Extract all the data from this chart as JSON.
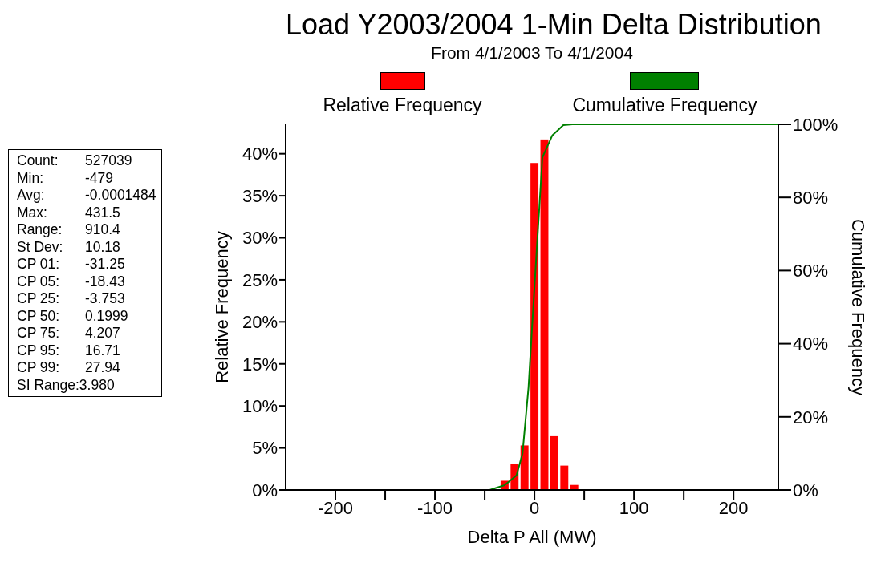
{
  "chart_data": {
    "type": "histogram",
    "title": "Load Y2003/2004 1-Min Delta Distribution",
    "subtitle": "From 4/1/2003 To 4/1/2004",
    "xlabel": "Delta P All (MW)",
    "ylabel": "Relative Frequency",
    "y2label": "Cumulative Frequency",
    "bins": [
      -45,
      -35,
      -25,
      -15,
      -5,
      5,
      15,
      25,
      35,
      45,
      55
    ],
    "series": [
      {
        "name": "Relative Frequency",
        "color": "#ff0000",
        "values": [
          null,
          1.1,
          3.1,
          5.3,
          38.9,
          41.7,
          6.4,
          2.9,
          0.6,
          null
        ]
      },
      {
        "name": "Cumulative Frequency",
        "type": "line",
        "axis": "y2",
        "color": "#008000",
        "x": [
          -250,
          -45,
          -30,
          -18,
          -12,
          -6,
          1,
          8,
          18,
          29,
          38,
          245
        ],
        "values": [
          0,
          0,
          1.3,
          4,
          10,
          28,
          60,
          91,
          97,
          99.8,
          100,
          100
        ]
      }
    ],
    "xlim": [
      -250,
      245
    ],
    "xticks": [
      -200,
      {
        "value": -150,
        "label": null
      },
      -100,
      {
        "value": -50,
        "label": null
      },
      0,
      {
        "value": 50,
        "label": null
      },
      100,
      {
        "value": 150,
        "label": null
      },
      200
    ],
    "ylim": [
      0,
      43.5
    ],
    "yticks": [
      {
        "value": 0,
        "label": "0%"
      },
      {
        "value": 5,
        "label": "5%"
      },
      {
        "value": 10,
        "label": "10%"
      },
      {
        "value": 15,
        "label": "15%"
      },
      {
        "value": 20,
        "label": "20%"
      },
      {
        "value": 25,
        "label": "25%"
      },
      {
        "value": 30,
        "label": "30%"
      },
      {
        "value": 35,
        "label": "35%"
      },
      {
        "value": 40,
        "label": "40%"
      }
    ],
    "y2lim": [
      0,
      100
    ],
    "y2ticks": [
      {
        "value": 0,
        "label": "0%"
      },
      {
        "value": 20,
        "label": "20%"
      },
      {
        "value": 40,
        "label": "40%"
      },
      {
        "value": 60,
        "label": "60%"
      },
      {
        "value": 80,
        "label": "80%"
      },
      {
        "value": 100,
        "label": "100%"
      }
    ],
    "legend": "top",
    "grid": false,
    "marker": "none",
    "annotations": [
      "Count: 527039",
      "Min: -479",
      "Avg: -0.0001484",
      "Max: 431.5",
      "Range: 910.4",
      "St Dev: 10.18",
      "CP 01: -31.25",
      "CP 05: -18.43",
      "CP 25: -3.753",
      "CP 50: 0.1999",
      "CP 75: 4.207",
      "CP 95: 16.71",
      "CP 99: 27.94",
      "SI Range:3.980"
    ]
  }
}
